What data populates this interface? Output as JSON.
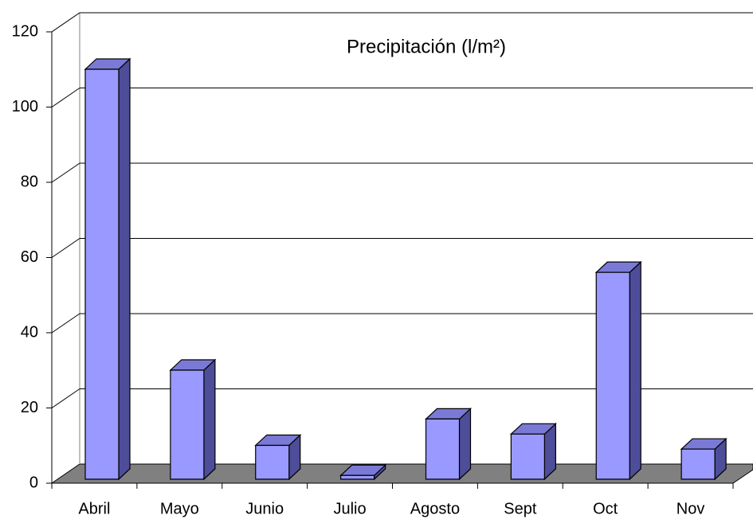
{
  "chart_data": {
    "type": "bar",
    "title": "Precipitación (l/m²)",
    "categories": [
      "Abril",
      "Mayo",
      "Junio",
      "Julio",
      "Agosto",
      "Sept",
      "Oct",
      "Nov"
    ],
    "values": [
      109,
      29,
      9,
      1,
      16,
      12,
      55,
      8
    ],
    "color": "#9999ff",
    "ylim": [
      0,
      120
    ],
    "yticks": [
      0,
      20,
      40,
      60,
      80,
      100,
      120
    ],
    "grid": true
  }
}
